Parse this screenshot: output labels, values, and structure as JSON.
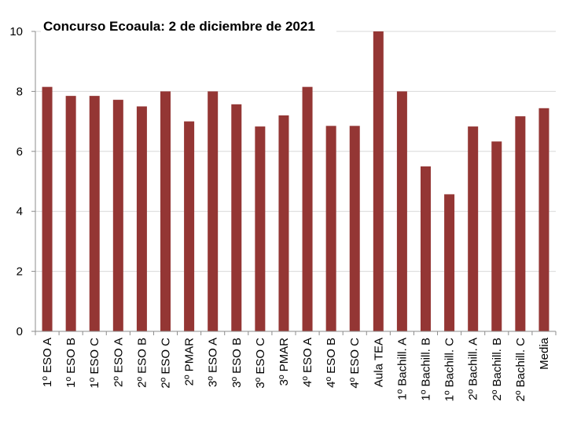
{
  "chart_data": {
    "type": "bar",
    "title": "Concurso Ecoaula: 2 de diciembre de 2021",
    "xlabel": "",
    "ylabel": "",
    "ylim": [
      0,
      10
    ],
    "yticks": [
      0,
      2,
      4,
      6,
      8,
      10
    ],
    "grid": true,
    "bar_color": "#943634",
    "categories": [
      "1º ESO A",
      "1º ESO B",
      "1º ESO C",
      "2º ESO A",
      "2º ESO B",
      "2º ESO C",
      "2º PMAR",
      "3º ESO A",
      "3º ESO B",
      "3º ESO C",
      "3º PMAR",
      "4º ESO A",
      "4º ESO B",
      "4º ESO C",
      "Aula TEA",
      "1º Bachill. A",
      "1º Bachill. B",
      "1º Bachill. C",
      "2º Bachill. A",
      "2º Bachill. B",
      "2º Bachill. C",
      "Media"
    ],
    "values": [
      8.15,
      7.85,
      7.85,
      7.72,
      7.5,
      8.0,
      7.0,
      8.0,
      7.57,
      6.83,
      7.2,
      8.15,
      6.85,
      6.85,
      10.0,
      8.0,
      5.5,
      4.57,
      6.83,
      6.33,
      7.17,
      7.44
    ]
  }
}
